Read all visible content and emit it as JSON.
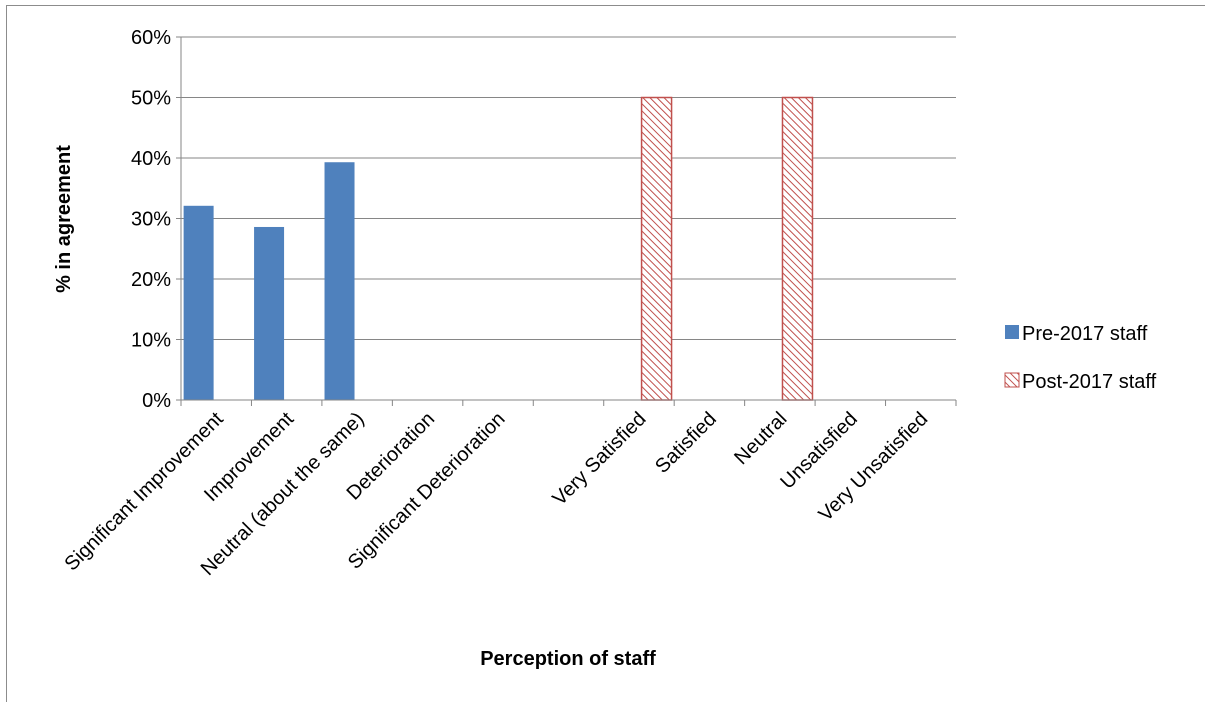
{
  "chart_data": {
    "type": "bar",
    "categories": [
      "Significant Improvement",
      "Improvement",
      "Neutral (about the same)",
      "Deterioration",
      "Significant Deterioration",
      "",
      "Very Satisfied",
      "Satisfied",
      "Neutral",
      "Unsatisfied",
      "Very Unsatisfied"
    ],
    "series": [
      {
        "name": "Pre-2017 staff",
        "values": [
          32.1,
          28.6,
          39.3,
          0,
          0,
          null,
          null,
          null,
          null,
          null,
          null
        ],
        "color": "#4f81bd",
        "pattern": "solid"
      },
      {
        "name": "Post-2017 staff",
        "values": [
          null,
          null,
          null,
          null,
          null,
          null,
          50,
          0,
          50,
          0,
          0
        ],
        "color": "#c0504d",
        "pattern": "diagonal-hatch"
      }
    ],
    "yticks": [
      "0%",
      "10%",
      "20%",
      "30%",
      "40%",
      "50%",
      "60%"
    ],
    "ylim": [
      0,
      60
    ],
    "xlabel": "Perception of staff",
    "ylabel": "% in agreement",
    "grid": true,
    "legend_position": "right"
  }
}
